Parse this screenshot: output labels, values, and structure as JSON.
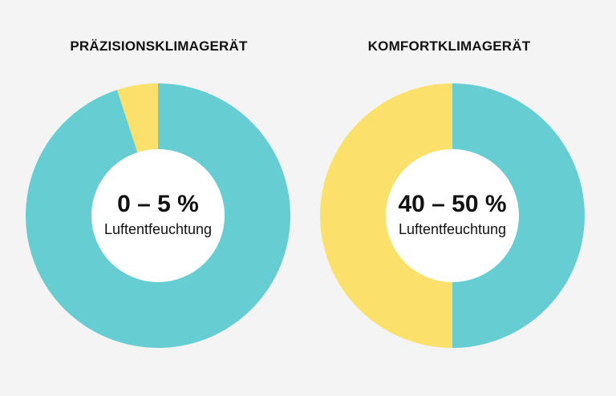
{
  "chart_data": [
    {
      "type": "pie",
      "title": "PRÄZISIONSKLIMAGERÄT",
      "center_value": "0 – 5 %",
      "center_label": "Luftentfeuchtung",
      "slices": [
        {
          "value": 95,
          "color": "#66cdd3"
        },
        {
          "value": 5,
          "color": "#fbe06b"
        }
      ]
    },
    {
      "type": "pie",
      "title": "KOMFORTKLIMAGERÄT",
      "center_value": "40 – 50 %",
      "center_label": "Luftentfeuchtung",
      "slices": [
        {
          "value": 50,
          "color": "#66cdd3"
        },
        {
          "value": 50,
          "color": "#fbe06b"
        }
      ]
    }
  ]
}
